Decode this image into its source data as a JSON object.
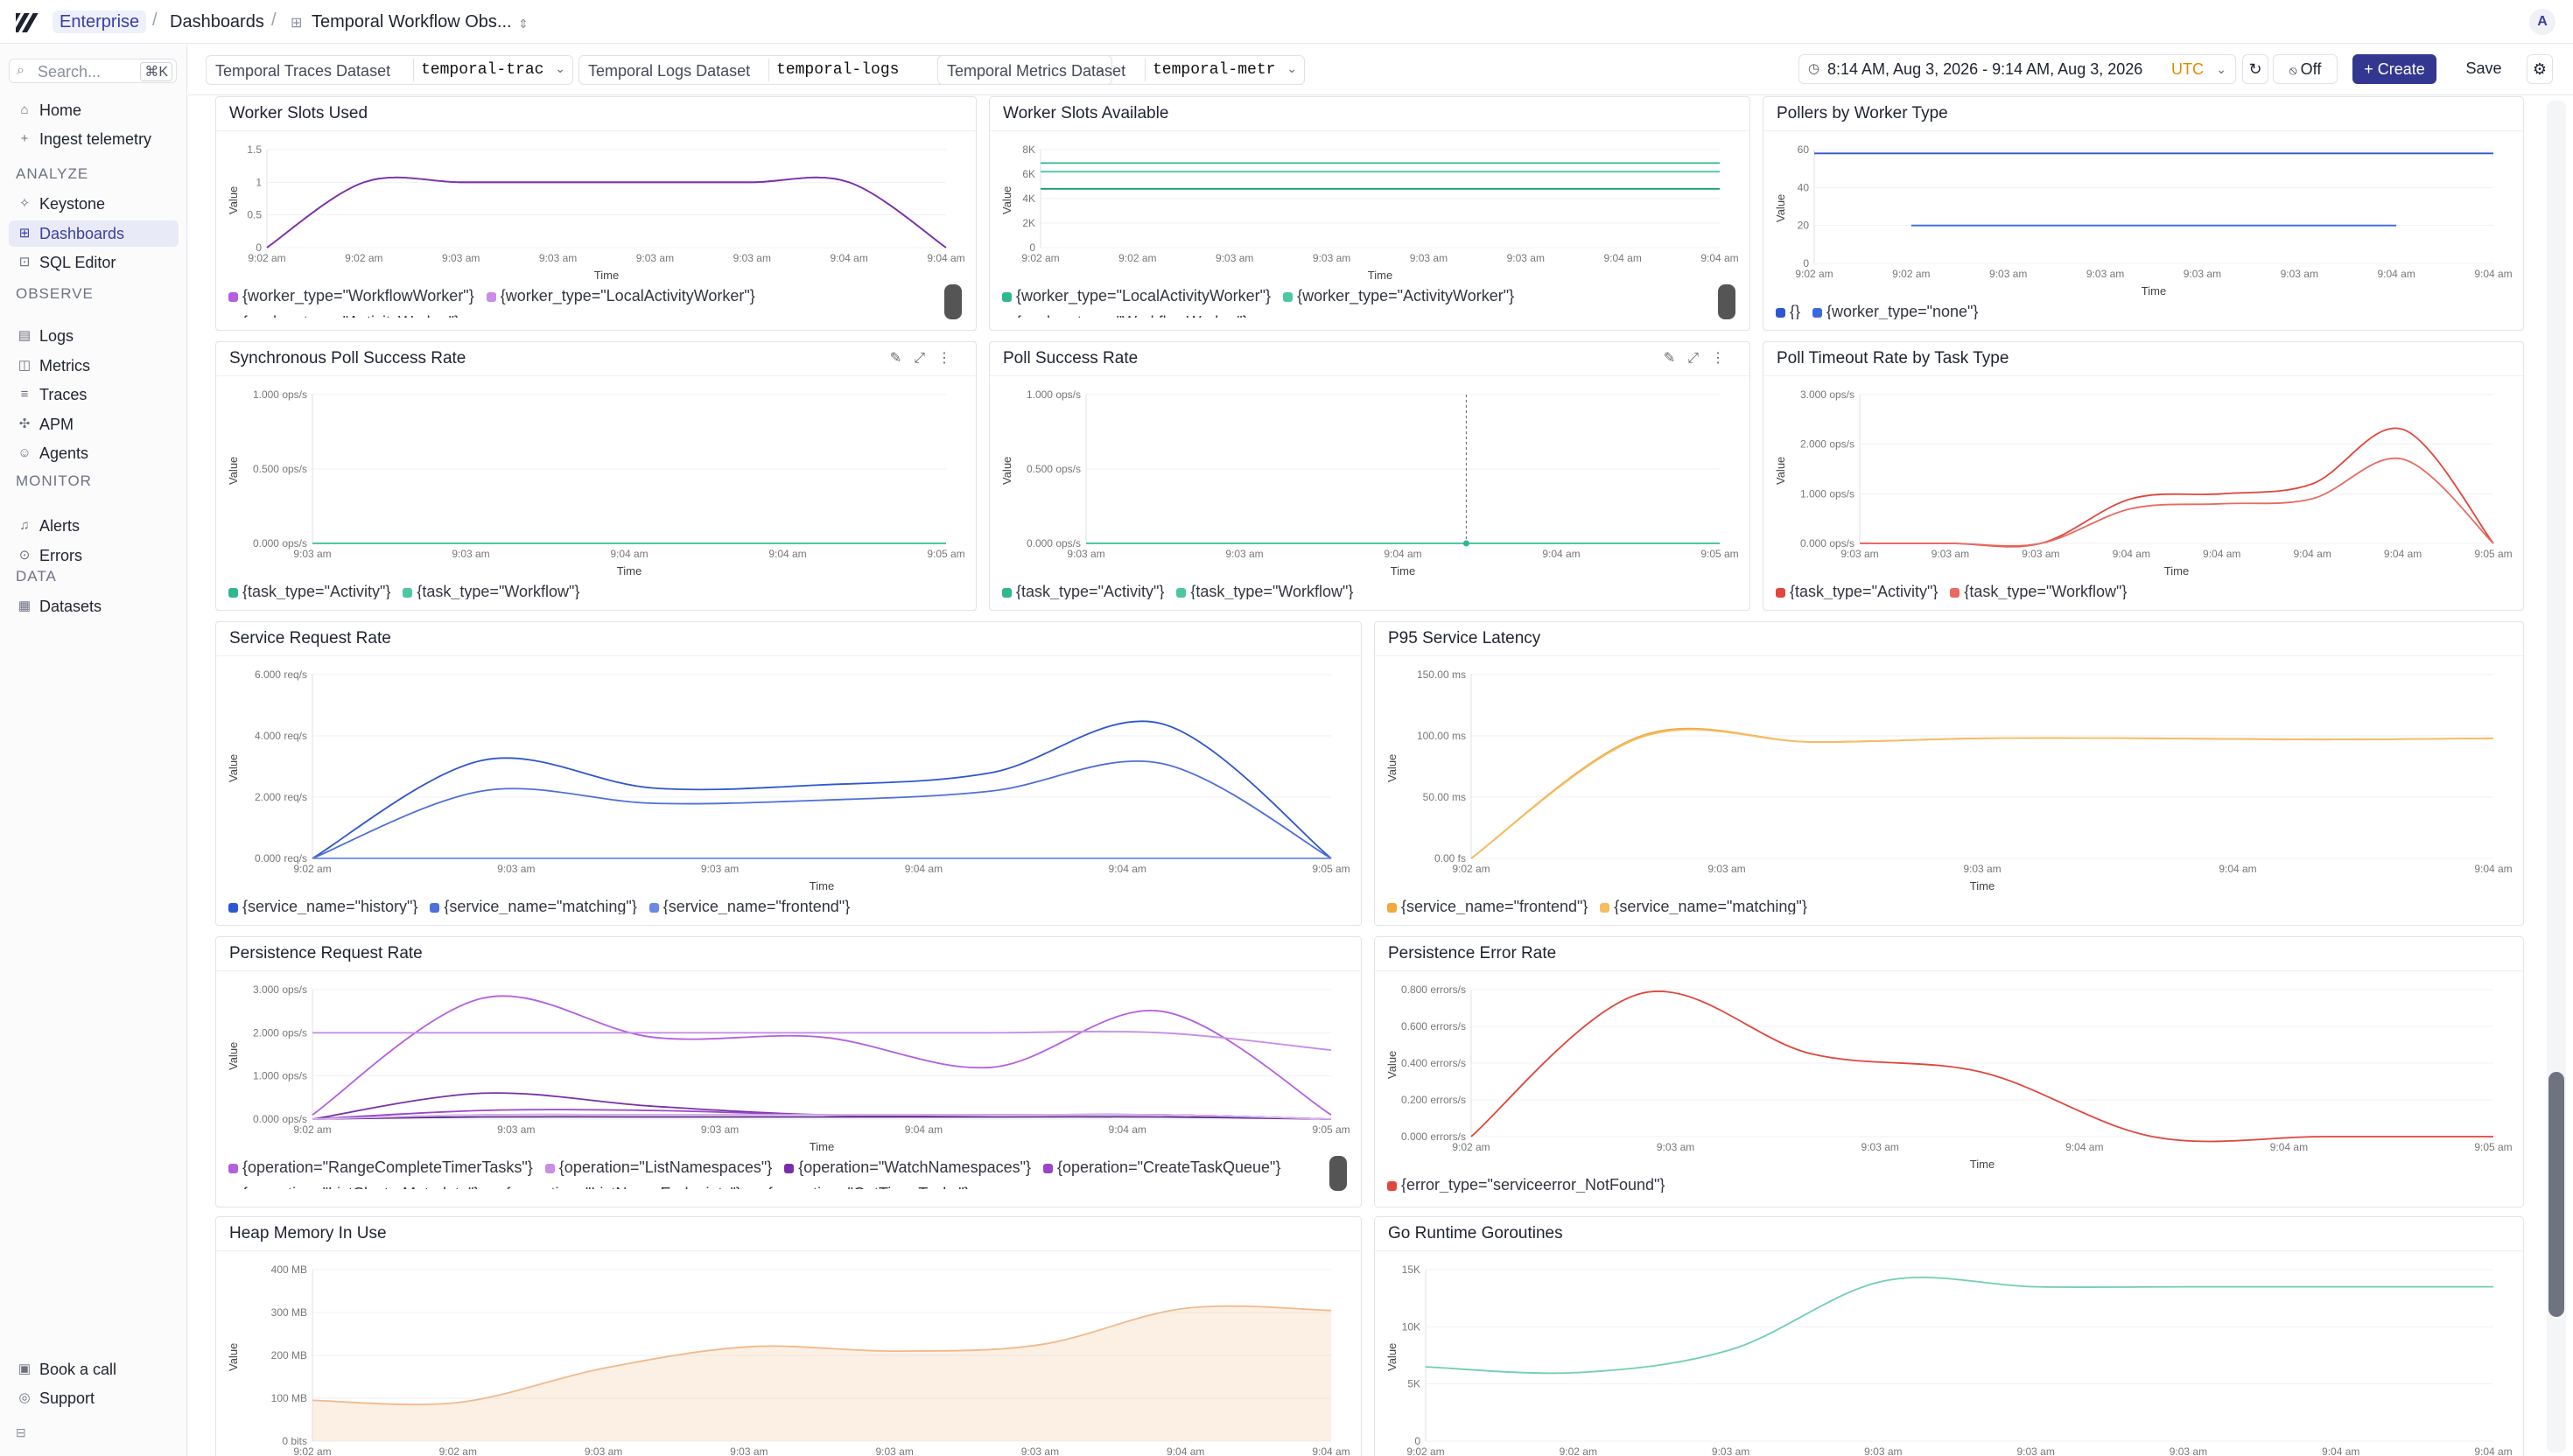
{
  "app": {
    "breadcrumbs": [
      "Enterprise",
      "Dashboards",
      "Temporal Workflow Obs..."
    ],
    "avatar": "A"
  },
  "sidebar": {
    "search_placeholder": "Search...",
    "search_shortcut": "⌘K",
    "top_items": [
      {
        "label": "Home",
        "icon": "home-icon"
      },
      {
        "label": "Ingest telemetry",
        "icon": "plus-icon"
      }
    ],
    "sections": [
      {
        "title": "ANALYZE",
        "items": [
          {
            "label": "Keystone",
            "icon": "sparkle-icon"
          },
          {
            "label": "Dashboards",
            "icon": "grid-icon",
            "active": true
          },
          {
            "label": "SQL Editor",
            "icon": "terminal-icon"
          }
        ]
      },
      {
        "title": "OBSERVE",
        "items": [
          {
            "label": "Logs",
            "icon": "file-icon"
          },
          {
            "label": "Metrics",
            "icon": "chart-icon"
          },
          {
            "label": "Traces",
            "icon": "traces-icon"
          },
          {
            "label": "APM",
            "icon": "apm-icon"
          },
          {
            "label": "Agents",
            "icon": "agent-icon"
          }
        ]
      },
      {
        "title": "MONITOR",
        "items": [
          {
            "label": "Alerts",
            "icon": "bell-icon"
          },
          {
            "label": "Errors",
            "icon": "error-icon"
          }
        ]
      },
      {
        "title": "DATA",
        "items": [
          {
            "label": "Datasets",
            "icon": "database-icon"
          }
        ]
      }
    ],
    "bottom_items": [
      {
        "label": "Book a call",
        "icon": "calendar-icon"
      },
      {
        "label": "Support",
        "icon": "support-icon"
      }
    ]
  },
  "filters": {
    "datasets": [
      {
        "label": "Temporal Traces Dataset",
        "value": "temporal-trac"
      },
      {
        "label": "Temporal Logs Dataset",
        "value": "temporal-logs"
      },
      {
        "label": "Temporal Metrics Dataset",
        "value": "temporal-metr"
      }
    ],
    "time_range": "8:14 AM, Aug 3, 2026 - 9:14 AM, Aug 3, 2026",
    "timezone": "UTC",
    "refresh_label": "Off",
    "create_label": "+ Create",
    "save_label": "Save"
  },
  "colors": {
    "purple": "#b45ee0",
    "teal": "#2fb88f",
    "blue": "#2e56d0",
    "red": "#e0463c",
    "orange": "#f2a93b",
    "heap": "#f2b98a",
    "green": "#6fd0ad",
    "accent": "#33378f"
  },
  "chart_data": [
    {
      "title": "Worker Slots Used",
      "type": "line",
      "ylabel": "Value",
      "xlabel": "Time",
      "yticks": [
        "1.5",
        "1",
        "0.5",
        "0"
      ],
      "ylim": [
        0,
        1.5
      ],
      "xticks": [
        "9:02 am",
        "9:02 am",
        "9:03 am",
        "9:03 am",
        "9:03 am",
        "9:03 am",
        "9:04 am",
        "9:04 am"
      ],
      "series": [
        {
          "name": "{worker_type=\"WorkflowWorker\"}",
          "color": "#b45ee0",
          "values": [
            0,
            1,
            1,
            1,
            1,
            1,
            1,
            0
          ]
        },
        {
          "name": "{worker_type=\"LocalActivityWorker\"}",
          "color": "#c88de6",
          "values": [
            0,
            1,
            1,
            1,
            1,
            1,
            1,
            0
          ]
        },
        {
          "name": "{worker_type=\"ActivityWorker\"}",
          "color": "#7a2fa8",
          "values": [
            0,
            1,
            1,
            1,
            1,
            1,
            1,
            0
          ]
        }
      ]
    },
    {
      "title": "Worker Slots Available",
      "type": "line",
      "ylabel": "Value",
      "xlabel": "Time",
      "yticks": [
        "8K",
        "6K",
        "4K",
        "2K",
        "0"
      ],
      "ylim": [
        0,
        8000
      ],
      "xticks": [
        "9:02 am",
        "9:02 am",
        "9:03 am",
        "9:03 am",
        "9:03 am",
        "9:03 am",
        "9:04 am",
        "9:04 am"
      ],
      "series": [
        {
          "name": "{worker_type=\"LocalActivityWorker\"}",
          "color": "#2fb88f",
          "values": [
            6900,
            6900,
            6900,
            6900,
            6900,
            6900,
            6900,
            6900
          ]
        },
        {
          "name": "{worker_type=\"ActivityWorker\"}",
          "color": "#4cc79f",
          "values": [
            6200,
            6200,
            6200,
            6200,
            6200,
            6200,
            6200,
            6200
          ]
        },
        {
          "name": "{worker_type=\"WorkflowWorker\"}",
          "color": "#1a9a72",
          "values": [
            4800,
            4800,
            4800,
            4800,
            4800,
            4800,
            4800,
            4800
          ]
        }
      ]
    },
    {
      "title": "Pollers by Worker Type",
      "type": "line",
      "ylabel": "Value",
      "xlabel": "Time",
      "yticks": [
        "60",
        "40",
        "20",
        "0"
      ],
      "ylim": [
        0,
        60
      ],
      "xticks": [
        "9:02 am",
        "9:02 am",
        "9:03 am",
        "9:03 am",
        "9:03 am",
        "9:03 am",
        "9:04 am",
        "9:04 am"
      ],
      "series": [
        {
          "name": "{}",
          "color": "#2e56d0",
          "values": [
            58,
            58,
            58,
            58,
            58,
            58,
            58,
            58
          ]
        },
        {
          "name": "{worker_type=\"none\"}",
          "color": "#3b6ae0",
          "values": [
            null,
            20,
            20,
            20,
            20,
            20,
            20,
            null
          ]
        }
      ]
    },
    {
      "title": "Synchronous Poll Success Rate",
      "type": "line",
      "ylabel": "Value",
      "xlabel": "Time",
      "yticks": [
        "1.000 ops/s",
        "0.500 ops/s",
        "0.000 ops/s"
      ],
      "ylim": [
        0,
        1
      ],
      "xticks": [
        "9:03 am",
        "9:03 am",
        "9:04 am",
        "9:04 am",
        "9:05 am"
      ],
      "series": [
        {
          "name": "{task_type=\"Activity\"}",
          "color": "#2fb88f",
          "values": [
            0,
            0,
            0,
            0,
            0
          ]
        },
        {
          "name": "{task_type=\"Workflow\"}",
          "color": "#4cc79f",
          "values": [
            0,
            0,
            0,
            0,
            0
          ]
        }
      ]
    },
    {
      "title": "Poll Success Rate",
      "type": "line",
      "ylabel": "Value",
      "xlabel": "Time",
      "yticks": [
        "1.000 ops/s",
        "0.500 ops/s",
        "0.000 ops/s"
      ],
      "ylim": [
        0,
        1
      ],
      "xticks": [
        "9:03 am",
        "9:03 am",
        "9:04 am",
        "9:04 am",
        "9:05 am"
      ],
      "series": [
        {
          "name": "{task_type=\"Activity\"}",
          "color": "#2fb88f",
          "values": [
            0,
            0,
            0,
            0,
            0
          ]
        },
        {
          "name": "{task_type=\"Workflow\"}",
          "color": "#4cc79f",
          "values": [
            0,
            0,
            0,
            0,
            0
          ]
        }
      ]
    },
    {
      "title": "Poll Timeout Rate by Task Type",
      "type": "line",
      "ylabel": "Value",
      "xlabel": "Time",
      "yticks": [
        "3.000 ops/s",
        "2.000 ops/s",
        "1.000 ops/s",
        "0.000 ops/s"
      ],
      "ylim": [
        0,
        3
      ],
      "xticks": [
        "9:03 am",
        "9:03 am",
        "9:03 am",
        "9:04 am",
        "9:04 am",
        "9:04 am",
        "9:04 am",
        "9:05 am"
      ],
      "series": [
        {
          "name": "{task_type=\"Activity\"}",
          "color": "#e0463c",
          "values": [
            0,
            0,
            0,
            0.9,
            1.0,
            1.2,
            2.3,
            0
          ]
        },
        {
          "name": "{task_type=\"Workflow\"}",
          "color": "#e86a60",
          "values": [
            0,
            0,
            0,
            0.7,
            0.8,
            0.9,
            1.7,
            0
          ]
        }
      ]
    },
    {
      "title": "Service Request Rate",
      "type": "line",
      "ylabel": "Value",
      "xlabel": "Time",
      "yticks": [
        "6.000 req/s",
        "4.000 req/s",
        "2.000 req/s",
        "0.000 req/s"
      ],
      "ylim": [
        0,
        6
      ],
      "xticks": [
        "9:02 am",
        "9:03 am",
        "9:03 am",
        "9:04 am",
        "9:04 am",
        "9:05 am"
      ],
      "series": [
        {
          "name": "{service_name=\"history\"}",
          "color": "#2e56d0",
          "values": [
            0,
            3.2,
            2.3,
            2.4,
            2.8,
            4.4,
            0
          ]
        },
        {
          "name": "{service_name=\"matching\"}",
          "color": "#4d6fd8",
          "values": [
            0,
            2.2,
            1.8,
            1.9,
            2.2,
            3.1,
            0
          ]
        },
        {
          "name": "{service_name=\"frontend\"}",
          "color": "#6a8ae6",
          "values": [
            0,
            0,
            0,
            0,
            0,
            0,
            0
          ]
        }
      ]
    },
    {
      "title": "P95 Service Latency",
      "type": "line",
      "ylabel": "Value",
      "xlabel": "Time",
      "yticks": [
        "150.00 ms",
        "100.00 ms",
        "50.00 ms",
        "0.00 fs"
      ],
      "ylim": [
        0,
        150
      ],
      "xticks": [
        "9:02 am",
        "9:03 am",
        "9:03 am",
        "9:04 am",
        "9:04 am"
      ],
      "series": [
        {
          "name": "{service_name=\"frontend\"}",
          "color": "#f2a93b",
          "values": [
            0,
            100,
            95,
            98,
            98,
            97,
            98
          ]
        },
        {
          "name": "{service_name=\"matching\"}",
          "color": "#f5bd62",
          "values": [
            0,
            99,
            95,
            98,
            98,
            97,
            98
          ]
        }
      ]
    },
    {
      "title": "Persistence Request Rate",
      "type": "line",
      "ylabel": "Value",
      "xlabel": "Time",
      "yticks": [
        "3.000 ops/s",
        "2.000 ops/s",
        "1.000 ops/s",
        "0.000 ops/s"
      ],
      "ylim": [
        0,
        3
      ],
      "xticks": [
        "9:02 am",
        "9:03 am",
        "9:03 am",
        "9:04 am",
        "9:04 am",
        "9:05 am"
      ],
      "series": [
        {
          "name": "{operation=\"RangeCompleteTimerTasks\"}",
          "color": "#b45ee0",
          "values": [
            0.1,
            2.8,
            1.9,
            1.9,
            1.2,
            2.5,
            0.1
          ]
        },
        {
          "name": "{operation=\"ListNamespaces\"}",
          "color": "#c88de6",
          "values": [
            2.0,
            2.0,
            2.0,
            2.0,
            2.0,
            2.0,
            1.6
          ]
        },
        {
          "name": "{operation=\"WatchNamespaces\"}",
          "color": "#7a2fa8",
          "values": [
            0,
            0.6,
            0.3,
            0.1,
            0.1,
            0.1,
            0
          ]
        },
        {
          "name": "{operation=\"CreateTaskQueue\"}",
          "color": "#9b45cc",
          "values": [
            0,
            0.2,
            0.2,
            0.1,
            0.1,
            0.1,
            0
          ]
        },
        {
          "name": "{operation=\"ListClusterMetadata\"}",
          "color": "#5a2a85",
          "values": [
            0,
            0.05,
            0.05,
            0.05,
            0.05,
            0.05,
            0
          ]
        },
        {
          "name": "{operation=\"ListNexusEndpoints\"}",
          "color": "#8a3cc0",
          "values": [
            0,
            0.1,
            0.1,
            0.1,
            0.1,
            0.1,
            0
          ]
        },
        {
          "name": "{operation=\"GetTimerTasks\"}",
          "color": "#d9b4ef",
          "values": [
            0,
            0.1,
            0.1,
            0.1,
            0.1,
            0.1,
            0
          ]
        }
      ]
    },
    {
      "title": "Persistence Error Rate",
      "type": "line",
      "ylabel": "Value",
      "xlabel": "Time",
      "yticks": [
        "0.800 errors/s",
        "0.600 errors/s",
        "0.400 errors/s",
        "0.200 errors/s",
        "0.000 errors/s"
      ],
      "ylim": [
        0,
        0.8
      ],
      "xticks": [
        "9:02 am",
        "9:03 am",
        "9:03 am",
        "9:04 am",
        "9:04 am",
        "9:05 am"
      ],
      "series": [
        {
          "name": "{error_type=\"serviceerror_NotFound\"}",
          "color": "#e0463c",
          "values": [
            0,
            0.78,
            0.45,
            0.35,
            0,
            0,
            0
          ]
        }
      ]
    },
    {
      "title": "Heap Memory In Use",
      "type": "area",
      "ylabel": "Value",
      "xlabel": "Time",
      "yticks": [
        "400 MB",
        "300 MB",
        "200 MB",
        "100 MB",
        "0 bits"
      ],
      "ylim": [
        0,
        400
      ],
      "xticks": [
        "9:02 am",
        "9:02 am",
        "9:03 am",
        "9:03 am",
        "9:03 am",
        "9:03 am",
        "9:04 am",
        "9:04 am"
      ],
      "series": [
        {
          "name": "",
          "color": "#f2b98a",
          "values": [
            95,
            90,
            170,
            220,
            210,
            225,
            310,
            305
          ]
        }
      ]
    },
    {
      "title": "Go Runtime Goroutines",
      "type": "line",
      "ylabel": "Value",
      "xlabel": "Time",
      "yticks": [
        "15K",
        "10K",
        "5K",
        "0"
      ],
      "ylim": [
        0,
        15000
      ],
      "xticks": [
        "9:02 am",
        "9:02 am",
        "9:03 am",
        "9:03 am",
        "9:03 am",
        "9:03 am",
        "9:04 am",
        "9:04 am"
      ],
      "series": [
        {
          "name": "",
          "color": "#6fd0ad",
          "values": [
            6500,
            6000,
            8000,
            14000,
            13500,
            13500,
            13500,
            13500
          ]
        }
      ]
    }
  ]
}
